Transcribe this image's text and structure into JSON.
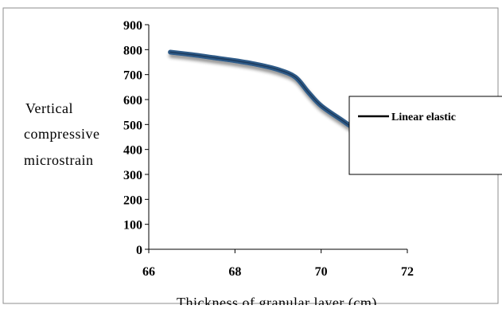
{
  "chart_data": {
    "type": "line",
    "title": "",
    "xlabel": "Thickness of granular layer (cm)",
    "ylabel_lines": [
      "Vertical",
      "compressive",
      "microstrain"
    ],
    "xlim": [
      66,
      72
    ],
    "ylim": [
      0,
      900
    ],
    "x_ticks": [
      "66",
      "68",
      "70",
      "72"
    ],
    "y_ticks": [
      "0",
      "100",
      "200",
      "300",
      "400",
      "500",
      "600",
      "700",
      "800",
      "900"
    ],
    "series": [
      {
        "name": "Linear elastic",
        "color": "#2e5a87",
        "x": [
          66.5,
          67.0,
          67.5,
          68.0,
          68.5,
          69.0,
          69.4,
          69.7,
          70.0,
          70.5,
          71.0
        ],
        "y": [
          790,
          780,
          768,
          756,
          741,
          720,
          690,
          630,
          575,
          515,
          455
        ]
      }
    ],
    "legend": {
      "position": "right",
      "entries": [
        "Linear elastic"
      ]
    },
    "grid": false
  }
}
